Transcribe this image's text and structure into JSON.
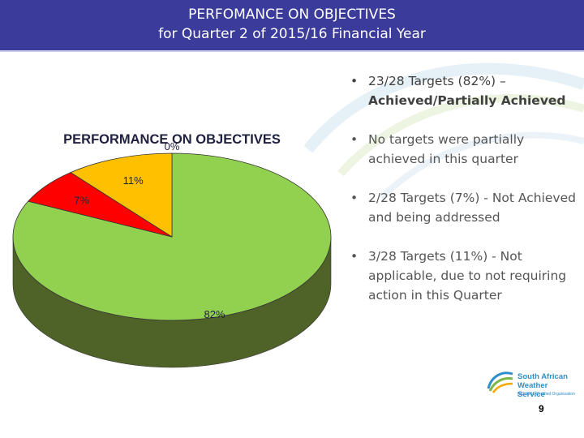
{
  "slide": {
    "title_line1": "PERFOMANCE ON OBJECTIVES",
    "title_line2": "for Quarter 2 of 2015/16 Financial Year",
    "page_number": "9"
  },
  "chart_data": {
    "type": "pie",
    "title": "PERFORMANCE ON OBJECTIVES",
    "slices": [
      {
        "name": "Achieved/Partially Achieved",
        "value": 82,
        "label": "82%",
        "color": "#92d050",
        "side": "#4f6228"
      },
      {
        "name": "Not Achieved",
        "value": 7,
        "label": "7%",
        "color": "#ff0000",
        "side": "#8b0000"
      },
      {
        "name": "Not applicable",
        "value": 11,
        "label": "11%",
        "color": "#ffc000",
        "side": "#a67c00"
      },
      {
        "name": "Partially achieved",
        "value": 0,
        "label": "0%",
        "color": "#00b0f0",
        "side": "#006080"
      }
    ]
  },
  "bullets": [
    {
      "text": "23/28 Targets (82%) – ",
      "bold": "Achieved/Partially Achieved"
    },
    {
      "text": "No targets were partially achieved in this quarter",
      "bold": ""
    },
    {
      "text": "2/28 Targets (7%) - Not Achieved and being addressed",
      "bold": ""
    },
    {
      "text": "3/28 Targets (11%) - Not applicable, due to not requiring action in this Quarter",
      "bold": ""
    }
  ],
  "logo": {
    "name_line1": "South African",
    "name_line2": "Weather Service",
    "tagline": "ISO 9001 Certified Organisation"
  }
}
